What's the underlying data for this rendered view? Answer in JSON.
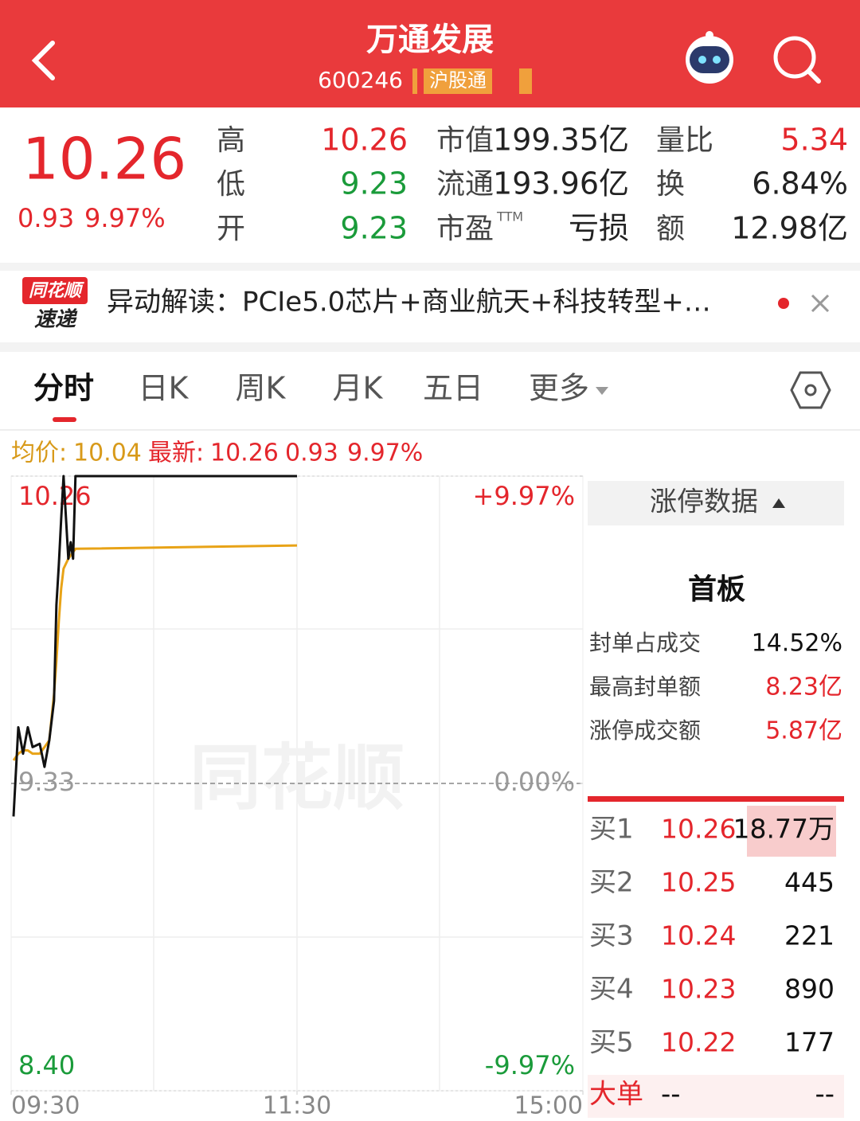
{
  "header": {
    "title": "万通发展",
    "code": "600246",
    "tag": "沪股通"
  },
  "quote": {
    "price": "10.26",
    "change": "0.93",
    "change_pct": "9.97%",
    "stats": [
      [
        {
          "label": "高",
          "value": "10.26",
          "color": "#e4262c"
        },
        {
          "label": "市值",
          "value": "199.35亿"
        },
        {
          "label": "量比",
          "value": "5.34",
          "color": "#e4262c"
        }
      ],
      [
        {
          "label": "低",
          "value": "9.23",
          "color": "#1a9b3a"
        },
        {
          "label": "流通",
          "value": "193.96亿"
        },
        {
          "label": "换",
          "value": "6.84%"
        }
      ],
      [
        {
          "label": "开",
          "value": "9.23",
          "color": "#1a9b3a"
        },
        {
          "label": "市盈",
          "sup": "TTM",
          "value": "亏损"
        },
        {
          "label": "额",
          "value": "12.98亿"
        }
      ]
    ]
  },
  "news": {
    "badge_top": "同花顺",
    "badge_bottom": "速递",
    "text": "异动解读：PCIe5.0芯片+商业航天+科技转型+…"
  },
  "tabs": [
    "分时",
    "日K",
    "周K",
    "月K",
    "五日",
    "更多"
  ],
  "info_bar": {
    "avg_label": "均价:",
    "avg": "10.04",
    "latest_label": "最新:",
    "latest": "10.26",
    "change": "0.93",
    "change_pct": "9.97%"
  },
  "chart_data": {
    "type": "line",
    "watermark": "同花顺",
    "x": [
      1,
      3,
      5,
      7,
      9,
      12,
      14,
      16,
      18,
      19,
      20,
      21,
      22,
      24,
      25,
      26,
      27,
      120
    ],
    "series": [
      {
        "name": "价格",
        "color": "#111111",
        "values": [
          9.23,
          9.5,
          9.42,
          9.5,
          9.44,
          9.45,
          9.38,
          9.46,
          9.58,
          9.87,
          9.99,
          10.13,
          10.26,
          10.01,
          10.06,
          10.01,
          10.26,
          10.26
        ]
      },
      {
        "name": "均价",
        "color": "#e8a317",
        "values": [
          9.4,
          9.42,
          9.43,
          9.43,
          9.42,
          9.42,
          9.44,
          9.46,
          9.6,
          9.7,
          9.82,
          9.92,
          9.98,
          10.01,
          10.02,
          10.03,
          10.04,
          10.05
        ]
      }
    ],
    "xlim": [
      0,
      240
    ],
    "xticks": [
      {
        "value": 0,
        "label": "09:30"
      },
      {
        "value": 120,
        "label": "11:30"
      },
      {
        "value": 240,
        "label": "15:00"
      }
    ],
    "ylim": [
      8.4,
      10.26
    ],
    "yticks": [
      10.26,
      9.33,
      {
        "value": 8.4,
        "label": "8.40"
      }
    ],
    "y2lim": [
      -9.97,
      9.97
    ],
    "y2ticks": [
      {
        "value": 9.97,
        "label": "+9.97%"
      },
      {
        "value": 0,
        "label": "0.00%"
      },
      {
        "value": -9.97,
        "label": "-9.97%"
      }
    ]
  },
  "limit_panel": {
    "title": "涨停数据",
    "board": "首板",
    "rows": [
      [
        "封单占成交",
        "14.52%"
      ],
      [
        "最高封单额",
        "8.23亿"
      ],
      [
        "涨停成交额",
        "5.87亿"
      ]
    ]
  },
  "order_book": {
    "rows": [
      [
        "买1",
        "10.26",
        "18.77万"
      ],
      [
        "买2",
        "10.25",
        "445"
      ],
      [
        "买3",
        "10.24",
        "221"
      ],
      [
        "买4",
        "10.23",
        "890"
      ],
      [
        "买5",
        "10.22",
        "177"
      ]
    ],
    "big": [
      "大单",
      "--",
      "--"
    ]
  }
}
